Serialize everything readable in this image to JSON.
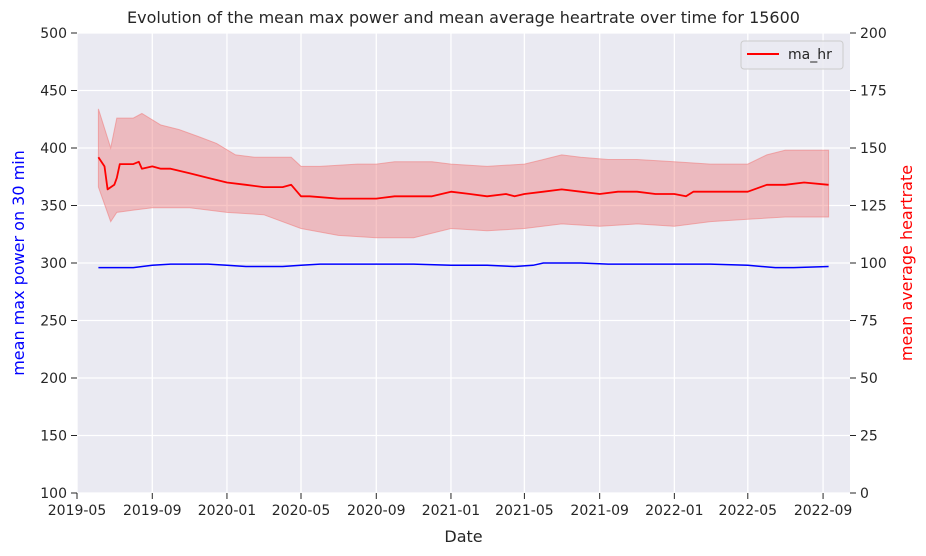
{
  "chart_data": {
    "type": "line",
    "title": "Evolution of the mean max power and mean average heartrate over time for 15600",
    "xlabel": "Date",
    "ylabel_left": "mean max power on 30 min",
    "ylabel_right": "mean average heartrate",
    "left_color": "#0000ff",
    "right_color": "#ff0000",
    "band_color": "#f08080",
    "background_color": "#eaeaf2",
    "grid": true,
    "legend_position": "top-right",
    "ylim_left": [
      100,
      500
    ],
    "ylim_right": [
      0,
      200
    ],
    "xlim": [
      "2019-05-01",
      "2022-10-15"
    ],
    "x_ticks": [
      "2019-05",
      "2019-09",
      "2020-01",
      "2020-05",
      "2020-09",
      "2021-01",
      "2021-05",
      "2021-09",
      "2022-01",
      "2022-05",
      "2022-09"
    ],
    "y_ticks_left": [
      100,
      150,
      200,
      250,
      300,
      350,
      400,
      450,
      500
    ],
    "y_ticks_right": [
      0,
      25,
      50,
      75,
      100,
      125,
      150,
      175,
      200
    ],
    "series": [
      {
        "name": "",
        "axis": "left",
        "points": [
          [
            "2019-06-05",
            296
          ],
          [
            "2019-07-01",
            296
          ],
          [
            "2019-08-01",
            296
          ],
          [
            "2019-09-01",
            298
          ],
          [
            "2019-10-01",
            299
          ],
          [
            "2019-11-01",
            299
          ],
          [
            "2019-12-01",
            299
          ],
          [
            "2020-01-01",
            298
          ],
          [
            "2020-02-01",
            297
          ],
          [
            "2020-03-01",
            297
          ],
          [
            "2020-04-01",
            297
          ],
          [
            "2020-05-01",
            298
          ],
          [
            "2020-06-01",
            299
          ],
          [
            "2020-07-01",
            299
          ],
          [
            "2020-09-01",
            299
          ],
          [
            "2020-11-01",
            299
          ],
          [
            "2021-01-01",
            298
          ],
          [
            "2021-03-01",
            298
          ],
          [
            "2021-04-15",
            297
          ],
          [
            "2021-05-15",
            298
          ],
          [
            "2021-06-01",
            300
          ],
          [
            "2021-08-01",
            300
          ],
          [
            "2021-09-15",
            299
          ],
          [
            "2021-11-01",
            299
          ],
          [
            "2022-01-01",
            299
          ],
          [
            "2022-03-01",
            299
          ],
          [
            "2022-05-01",
            298
          ],
          [
            "2022-06-15",
            296
          ],
          [
            "2022-07-15",
            296
          ],
          [
            "2022-09-10",
            297
          ]
        ]
      },
      {
        "name": "ma_hr",
        "axis": "right",
        "points": [
          [
            "2019-06-05",
            146
          ],
          [
            "2019-06-15",
            142
          ],
          [
            "2019-06-20",
            132
          ],
          [
            "2019-07-01",
            134
          ],
          [
            "2019-07-05",
            137
          ],
          [
            "2019-07-10",
            143
          ],
          [
            "2019-08-01",
            143
          ],
          [
            "2019-08-10",
            144
          ],
          [
            "2019-08-15",
            141
          ],
          [
            "2019-09-01",
            142
          ],
          [
            "2019-09-15",
            141
          ],
          [
            "2019-10-01",
            141
          ],
          [
            "2019-11-01",
            139
          ],
          [
            "2019-12-01",
            137
          ],
          [
            "2020-01-01",
            135
          ],
          [
            "2020-02-01",
            134
          ],
          [
            "2020-03-01",
            133
          ],
          [
            "2020-04-01",
            133
          ],
          [
            "2020-04-15",
            134
          ],
          [
            "2020-05-01",
            129
          ],
          [
            "2020-05-15",
            129
          ],
          [
            "2020-07-01",
            128
          ],
          [
            "2020-08-01",
            128
          ],
          [
            "2020-09-01",
            128
          ],
          [
            "2020-10-01",
            129
          ],
          [
            "2020-11-01",
            129
          ],
          [
            "2020-12-01",
            129
          ],
          [
            "2021-01-01",
            131
          ],
          [
            "2021-02-01",
            130
          ],
          [
            "2021-03-01",
            129
          ],
          [
            "2021-04-01",
            130
          ],
          [
            "2021-04-15",
            129
          ],
          [
            "2021-05-01",
            130
          ],
          [
            "2021-06-01",
            131
          ],
          [
            "2021-07-01",
            132
          ],
          [
            "2021-08-01",
            131
          ],
          [
            "2021-09-01",
            130
          ],
          [
            "2021-10-01",
            131
          ],
          [
            "2021-11-01",
            131
          ],
          [
            "2021-12-01",
            130
          ],
          [
            "2022-01-01",
            130
          ],
          [
            "2022-01-20",
            129
          ],
          [
            "2022-02-01",
            131
          ],
          [
            "2022-03-01",
            131
          ],
          [
            "2022-04-01",
            131
          ],
          [
            "2022-05-01",
            131
          ],
          [
            "2022-06-01",
            134
          ],
          [
            "2022-07-01",
            134
          ],
          [
            "2022-08-01",
            135
          ],
          [
            "2022-09-10",
            134
          ]
        ]
      }
    ],
    "band": {
      "axis": "right",
      "upper": [
        [
          "2019-06-05",
          167
        ],
        [
          "2019-06-25",
          150
        ],
        [
          "2019-07-05",
          163
        ],
        [
          "2019-08-01",
          163
        ],
        [
          "2019-08-15",
          165
        ],
        [
          "2019-09-15",
          160
        ],
        [
          "2019-10-15",
          158
        ],
        [
          "2019-11-15",
          155
        ],
        [
          "2019-12-15",
          152
        ],
        [
          "2020-01-15",
          147
        ],
        [
          "2020-02-15",
          146
        ],
        [
          "2020-03-15",
          146
        ],
        [
          "2020-04-15",
          146
        ],
        [
          "2020-05-01",
          142
        ],
        [
          "2020-06-01",
          142
        ],
        [
          "2020-08-01",
          143
        ],
        [
          "2020-09-01",
          143
        ],
        [
          "2020-10-01",
          144
        ],
        [
          "2020-12-01",
          144
        ],
        [
          "2021-01-01",
          143
        ],
        [
          "2021-03-01",
          142
        ],
        [
          "2021-05-01",
          143
        ],
        [
          "2021-06-01",
          145
        ],
        [
          "2021-07-01",
          147
        ],
        [
          "2021-08-01",
          146
        ],
        [
          "2021-09-15",
          145
        ],
        [
          "2021-11-01",
          145
        ],
        [
          "2022-01-01",
          144
        ],
        [
          "2022-03-01",
          143
        ],
        [
          "2022-05-01",
          143
        ],
        [
          "2022-06-01",
          147
        ],
        [
          "2022-07-01",
          149
        ],
        [
          "2022-09-10",
          149
        ]
      ],
      "lower": [
        [
          "2019-06-05",
          133
        ],
        [
          "2019-06-25",
          118
        ],
        [
          "2019-07-05",
          122
        ],
        [
          "2019-08-01",
          123
        ],
        [
          "2019-09-01",
          124
        ],
        [
          "2019-11-01",
          124
        ],
        [
          "2020-01-01",
          122
        ],
        [
          "2020-03-01",
          121
        ],
        [
          "2020-05-01",
          115
        ],
        [
          "2020-07-01",
          112
        ],
        [
          "2020-09-01",
          111
        ],
        [
          "2020-11-01",
          111
        ],
        [
          "2021-01-01",
          115
        ],
        [
          "2021-03-01",
          114
        ],
        [
          "2021-05-01",
          115
        ],
        [
          "2021-07-01",
          117
        ],
        [
          "2021-09-01",
          116
        ],
        [
          "2021-11-01",
          117
        ],
        [
          "2022-01-01",
          116
        ],
        [
          "2022-03-01",
          118
        ],
        [
          "2022-05-01",
          119
        ],
        [
          "2022-07-01",
          120
        ],
        [
          "2022-09-10",
          120
        ]
      ]
    }
  }
}
